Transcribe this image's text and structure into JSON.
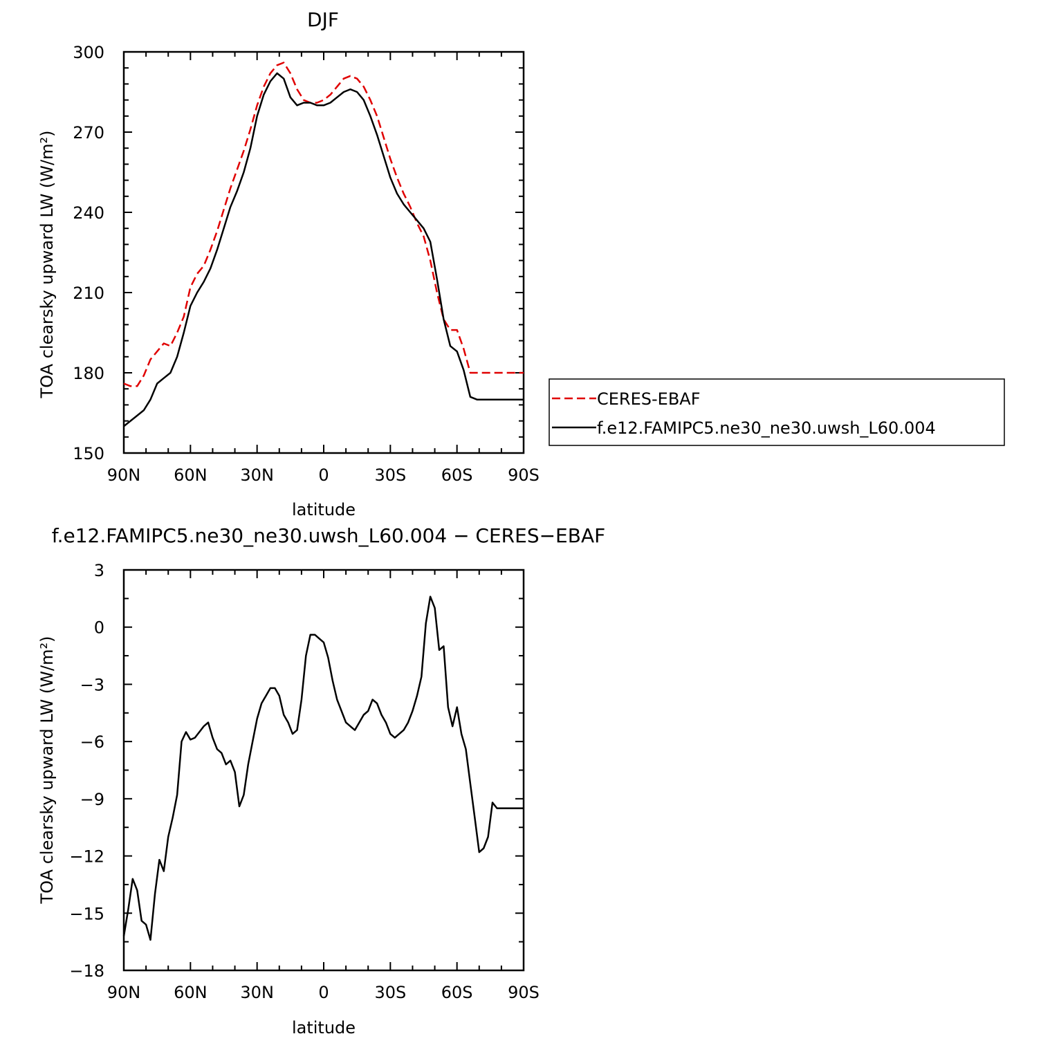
{
  "chart_data": [
    {
      "type": "line",
      "title": "DJF",
      "xlabel": "latitude",
      "ylabel": "TOA clearsky upward LW (W/m²)",
      "xlim": [
        90,
        -90
      ],
      "ylim": [
        150,
        300
      ],
      "xticks": [
        90,
        60,
        30,
        0,
        -30,
        -60,
        -90
      ],
      "xtick_labels": [
        "90N",
        "60N",
        "30N",
        "0",
        "30S",
        "60S",
        "90S"
      ],
      "yticks": [
        150,
        180,
        210,
        240,
        270,
        300
      ],
      "ytick_labels": [
        "150",
        "180",
        "210",
        "240",
        "270",
        "300"
      ],
      "legend_position": "right",
      "series": [
        {
          "name": "CERES-EBAF",
          "color": "#e00000",
          "style": "dashed",
          "x": [
            90,
            87,
            84,
            81,
            78,
            75,
            72,
            69,
            66,
            63,
            60,
            57,
            54,
            51,
            48,
            45,
            42,
            39,
            36,
            33,
            30,
            27,
            24,
            21,
            18,
            15,
            12,
            9,
            6,
            3,
            0,
            -3,
            -6,
            -9,
            -12,
            -15,
            -18,
            -21,
            -24,
            -27,
            -30,
            -33,
            -36,
            -39,
            -42,
            -45,
            -48,
            -51,
            -54,
            -57,
            -60,
            -63,
            -66,
            -69,
            -72,
            -75,
            -78,
            -81,
            -84,
            -87,
            -90
          ],
          "y": [
            176,
            175,
            175,
            179,
            185,
            188,
            191,
            190,
            195,
            201,
            212,
            217,
            220,
            226,
            233,
            241,
            249,
            256,
            263,
            271,
            280,
            287,
            292,
            295,
            296,
            292,
            286,
            282,
            281,
            281,
            282,
            284,
            287,
            290,
            291,
            290,
            287,
            282,
            276,
            268,
            260,
            253,
            247,
            242,
            236,
            231,
            222,
            210,
            200,
            196,
            196,
            189,
            180,
            180,
            180,
            180,
            180,
            180,
            180,
            180,
            180
          ]
        },
        {
          "name": "f.e12.FAMIPC5.ne30_ne30.uwsh_L60.004",
          "color": "#000000",
          "style": "solid",
          "x": [
            90,
            87,
            84,
            81,
            78,
            75,
            72,
            69,
            66,
            63,
            60,
            57,
            54,
            51,
            48,
            45,
            42,
            39,
            36,
            33,
            30,
            27,
            24,
            21,
            18,
            15,
            12,
            9,
            6,
            3,
            0,
            -3,
            -6,
            -9,
            -12,
            -15,
            -18,
            -21,
            -24,
            -27,
            -30,
            -33,
            -36,
            -39,
            -42,
            -45,
            -48,
            -51,
            -54,
            -57,
            -60,
            -63,
            -66,
            -69,
            -72,
            -75,
            -78,
            -81,
            -84,
            -87,
            -90
          ],
          "y": [
            160,
            162,
            164,
            166,
            170,
            176,
            178,
            180,
            186,
            195,
            205,
            210,
            214,
            219,
            226,
            234,
            242,
            248,
            255,
            264,
            276,
            284,
            289,
            292,
            290,
            283,
            280,
            281,
            281,
            280,
            280,
            281,
            283,
            285,
            286,
            285,
            282,
            276,
            269,
            261,
            253,
            247,
            243,
            240,
            237,
            234,
            229,
            215,
            200,
            190,
            188,
            181,
            171,
            170,
            170,
            170,
            170,
            170,
            170,
            170,
            170
          ]
        }
      ]
    },
    {
      "type": "line",
      "title": "f.e12.FAMIPC5.ne30_ne30.uwsh_L60.004 − CERES−EBAF",
      "xlabel": "latitude",
      "ylabel": "TOA clearsky upward LW (W/m²)",
      "xlim": [
        90,
        -90
      ],
      "ylim": [
        -18,
        3
      ],
      "xticks": [
        90,
        60,
        30,
        0,
        -30,
        -60,
        -90
      ],
      "xtick_labels": [
        "90N",
        "60N",
        "30N",
        "0",
        "30S",
        "60S",
        "90S"
      ],
      "yticks": [
        3,
        0,
        -3,
        -6,
        -9,
        -12,
        -15,
        -18
      ],
      "ytick_labels": [
        "3",
        "0",
        "−3",
        "−6",
        "−9",
        "−12",
        "−15",
        "−18"
      ],
      "series": [
        {
          "color": "#000000",
          "style": "solid",
          "x": [
            90,
            88,
            86,
            84,
            82,
            80,
            78,
            76,
            74,
            72,
            70,
            68,
            66,
            64,
            62,
            60,
            58,
            56,
            54,
            52,
            50,
            48,
            46,
            44,
            42,
            40,
            38,
            36,
            34,
            32,
            30,
            28,
            26,
            24,
            22,
            20,
            18,
            16,
            14,
            12,
            10,
            8,
            6,
            4,
            2,
            0,
            -2,
            -4,
            -6,
            -8,
            -10,
            -12,
            -14,
            -16,
            -18,
            -20,
            -22,
            -24,
            -26,
            -28,
            -30,
            -32,
            -34,
            -36,
            -38,
            -40,
            -42,
            -44,
            -46,
            -48,
            -50,
            -52,
            -54,
            -56,
            -58,
            -60,
            -62,
            -64,
            -66,
            -68,
            -70,
            -72,
            -74,
            -76,
            -78,
            -80,
            -82,
            -84,
            -86,
            -88,
            -90
          ],
          "y": [
            -16.2,
            -14.8,
            -13.2,
            -13.8,
            -15.4,
            -15.6,
            -16.4,
            -14.0,
            -12.2,
            -12.8,
            -11.0,
            -10.0,
            -8.8,
            -6.0,
            -5.5,
            -5.9,
            -5.8,
            -5.5,
            -5.2,
            -5.0,
            -5.8,
            -6.4,
            -6.6,
            -7.2,
            -7.0,
            -7.6,
            -9.4,
            -8.8,
            -7.2,
            -6.0,
            -4.8,
            -4.0,
            -3.6,
            -3.2,
            -3.2,
            -3.6,
            -4.6,
            -5.0,
            -5.6,
            -5.4,
            -3.8,
            -1.5,
            -0.4,
            -0.4,
            -0.6,
            -0.8,
            -1.6,
            -2.8,
            -3.8,
            -4.4,
            -5.0,
            -5.2,
            -5.4,
            -5.0,
            -4.6,
            -4.4,
            -3.8,
            -4.0,
            -4.6,
            -5.0,
            -5.6,
            -5.8,
            -5.6,
            -5.4,
            -5.0,
            -4.4,
            -3.6,
            -2.6,
            0.2,
            1.6,
            1.0,
            -1.2,
            -1.0,
            -4.2,
            -5.2,
            -4.2,
            -5.6,
            -6.4,
            -8.2,
            -10.0,
            -11.8,
            -11.6,
            -11.0,
            -9.2,
            -9.5,
            -9.5,
            -9.5,
            -9.5,
            -9.5,
            -9.5,
            -9.5
          ]
        }
      ]
    }
  ]
}
